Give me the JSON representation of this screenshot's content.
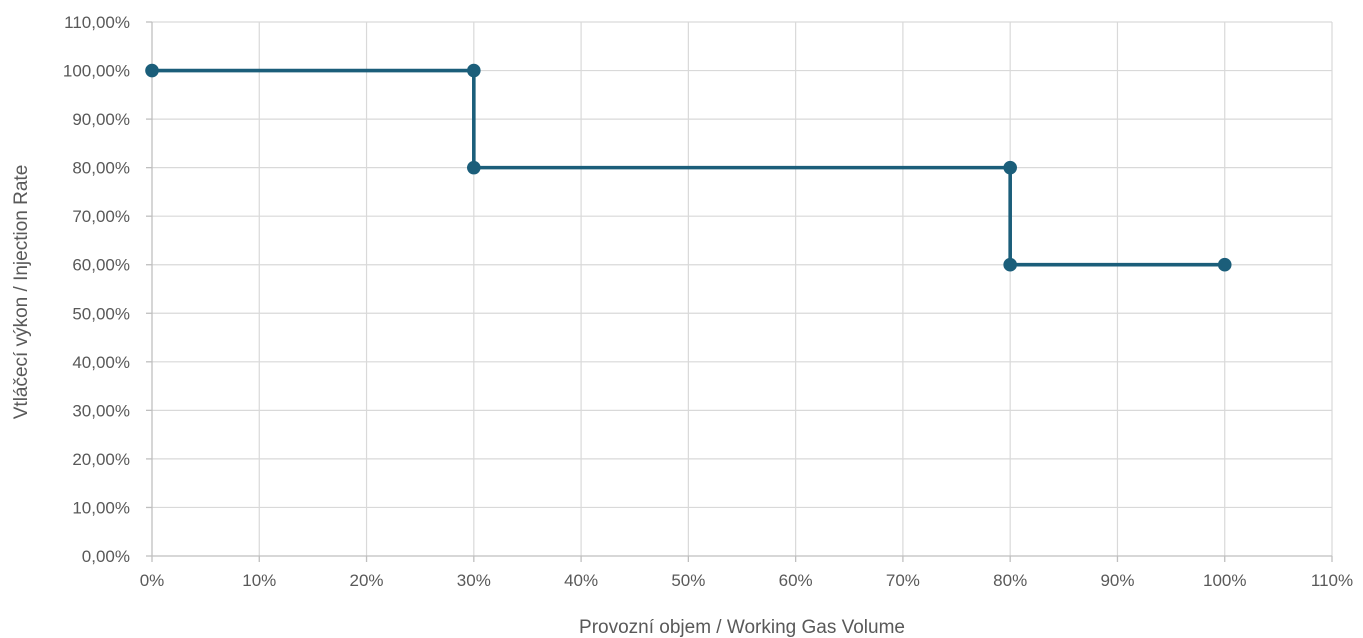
{
  "chart_data": {
    "type": "line",
    "title": "",
    "xlabel": "Provozní objem / Working Gas Volume",
    "ylabel": "Vtláčecí výkon / Injection Rate",
    "xlim": [
      0,
      110
    ],
    "ylim": [
      0,
      110
    ],
    "x_ticks": [
      0,
      10,
      20,
      30,
      40,
      50,
      60,
      70,
      80,
      90,
      100,
      110
    ],
    "x_tick_labels": [
      "0%",
      "10%",
      "20%",
      "30%",
      "40%",
      "50%",
      "60%",
      "70%",
      "80%",
      "90%",
      "100%",
      "110%"
    ],
    "y_ticks": [
      0,
      10,
      20,
      30,
      40,
      50,
      60,
      70,
      80,
      90,
      100,
      110
    ],
    "y_tick_labels": [
      "0,00%",
      "10,00%",
      "20,00%",
      "30,00%",
      "40,00%",
      "50,00%",
      "60,00%",
      "70,00%",
      "80,00%",
      "90,00%",
      "100,00%",
      "110,00%"
    ],
    "grid": true,
    "legend": "none",
    "series": [
      {
        "x": [
          0,
          30,
          30,
          80,
          80,
          100
        ],
        "y": [
          100,
          100,
          80,
          80,
          60,
          60
        ],
        "color": "#1b5e7a",
        "marker": "circle"
      }
    ]
  }
}
